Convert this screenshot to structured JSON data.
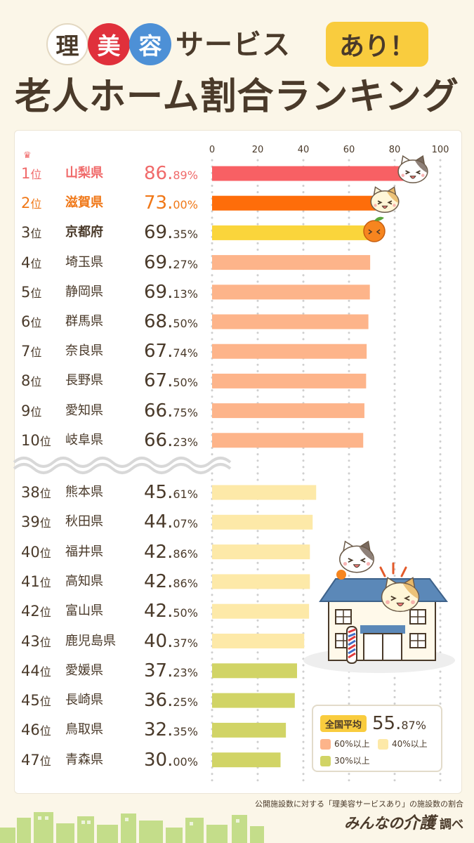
{
  "header": {
    "circle_chars": [
      "理",
      "美",
      "容"
    ],
    "subtitle": "サービス",
    "badge": "あり！",
    "title": "老人ホーム割合ランキング"
  },
  "chart_data": {
    "type": "bar",
    "orientation": "horizontal",
    "axis": {
      "ticks": [
        0,
        20,
        40,
        60,
        80,
        100
      ],
      "xlim": [
        0,
        100
      ],
      "grid": true
    },
    "unit": "%",
    "ranks": [
      "1位",
      "2位",
      "3位",
      "4位",
      "5位",
      "6位",
      "7位",
      "8位",
      "9位",
      "10位",
      "38位",
      "39位",
      "40位",
      "41位",
      "42位",
      "43位",
      "44位",
      "45位",
      "46位",
      "47位"
    ],
    "categories": [
      "山梨県",
      "滋賀県",
      "京都府",
      "埼玉県",
      "静岡県",
      "群馬県",
      "奈良県",
      "長野県",
      "愛知県",
      "岐阜県",
      "熊本県",
      "秋田県",
      "福井県",
      "高知県",
      "富山県",
      "鹿児島県",
      "愛媛県",
      "長崎県",
      "鳥取県",
      "青森県"
    ],
    "values": [
      86.89,
      73.0,
      69.35,
      69.27,
      69.13,
      68.5,
      67.74,
      67.5,
      66.75,
      66.23,
      45.61,
      44.07,
      42.86,
      42.86,
      42.5,
      40.37,
      37.23,
      36.25,
      32.35,
      30.0
    ],
    "value_labels": [
      [
        "86.",
        "89%"
      ],
      [
        "73.",
        "00%"
      ],
      [
        "69.",
        "35%"
      ],
      [
        "69.",
        "27%"
      ],
      [
        "69.",
        "13%"
      ],
      [
        "68.",
        "50%"
      ],
      [
        "67.",
        "74%"
      ],
      [
        "67.",
        "50%"
      ],
      [
        "66.",
        "75%"
      ],
      [
        "66.",
        "23%"
      ],
      [
        "45.",
        "61%"
      ],
      [
        "44.",
        "07%"
      ],
      [
        "42.",
        "86%"
      ],
      [
        "42.",
        "86%"
      ],
      [
        "42.",
        "50%"
      ],
      [
        "40.",
        "37%"
      ],
      [
        "37.",
        "23%"
      ],
      [
        "36.",
        "25%"
      ],
      [
        "32.",
        "35%"
      ],
      [
        "30.",
        "00%"
      ]
    ],
    "top3_colors": [
      "#f86064",
      "#fe6d0a",
      "#fad53b"
    ],
    "top3_text_colors": [
      "#f06a6a",
      "#f07818",
      "#4a3a2a"
    ]
  },
  "legend": {
    "average_label": "全国平均",
    "average_value": [
      "55.",
      "87%"
    ],
    "items": [
      {
        "label": "60%以上",
        "color": "#fdb48a"
      },
      {
        "label": "40%以上",
        "color": "#fde9a8"
      },
      {
        "label": "30%以上",
        "color": "#d1d466"
      }
    ]
  },
  "footer": {
    "note": "公開施設数に対する「理美容サービスあり」の施設数の割合",
    "brand_prefix": "みんなの",
    "brand_main": "介護",
    "brand_suffix": "調べ"
  }
}
